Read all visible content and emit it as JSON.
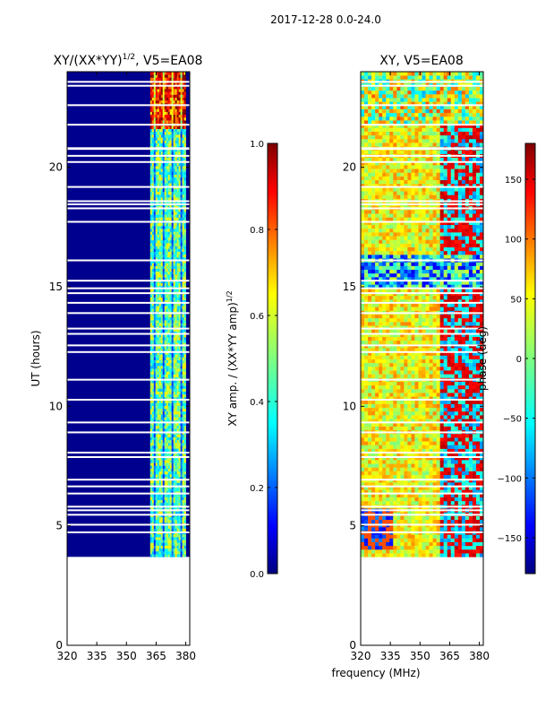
{
  "suptitle": "2017-12-28 0.0-24.0",
  "shared_xlabel": "frequency (MHz)",
  "colors": {
    "image_bg": "#00008f",
    "blank": "#ffffff"
  },
  "chart_data": [
    {
      "type": "heatmap",
      "title_main": "XY/(XX*YY)",
      "title_exp": "1/2",
      "title_suffix": ", V5=EA08",
      "xlabel": "",
      "ylabel": "UT (hours)",
      "xlim": [
        320,
        382
      ],
      "ylim": [
        0,
        24
      ],
      "xticks": [
        320,
        335,
        350,
        365,
        380
      ],
      "yticks": [
        0,
        5,
        10,
        15,
        20
      ],
      "data_start_ut": 3.7,
      "active_band_mhz": [
        362,
        380
      ],
      "colorbar": {
        "label_main": "XY amp. / (XX*YY amp)",
        "label_exp": "1/2",
        "range": [
          0.0,
          1.0
        ],
        "ticks": [
          "0.0",
          "0.2",
          "0.4",
          "0.6",
          "0.8",
          "1.0"
        ],
        "tick_values": [
          0.0,
          0.2,
          0.4,
          0.6,
          0.8,
          1.0
        ]
      }
    },
    {
      "type": "heatmap",
      "title": "XY, V5=EA08",
      "xlabel": "",
      "ylabel": "",
      "xlim": [
        320,
        382
      ],
      "ylim": [
        0,
        24
      ],
      "xticks": [
        320,
        335,
        350,
        365,
        380
      ],
      "yticks": [
        0,
        5,
        10,
        15,
        20
      ],
      "data_start_ut": 3.7,
      "colorbar": {
        "label": "phase (deg)",
        "range": [
          -180,
          180
        ],
        "ticks": [
          "−150",
          "−100",
          "−50",
          "0",
          "50",
          "100",
          "150"
        ],
        "tick_values": [
          -150,
          -100,
          -50,
          0,
          50,
          100,
          150
        ]
      }
    }
  ]
}
